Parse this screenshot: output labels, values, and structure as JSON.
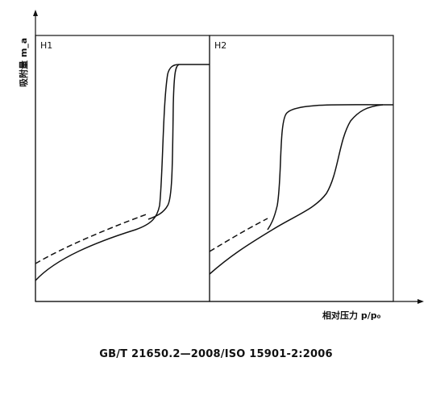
{
  "diagram": {
    "panels": [
      {
        "label": "H1"
      },
      {
        "label": "H2"
      }
    ],
    "y_axis_label": "吸附量 m_a",
    "x_axis_label": "相对压力 p/p₀"
  },
  "caption": "GB/T 21650.2—2008/ISO 15901-2:2006"
}
